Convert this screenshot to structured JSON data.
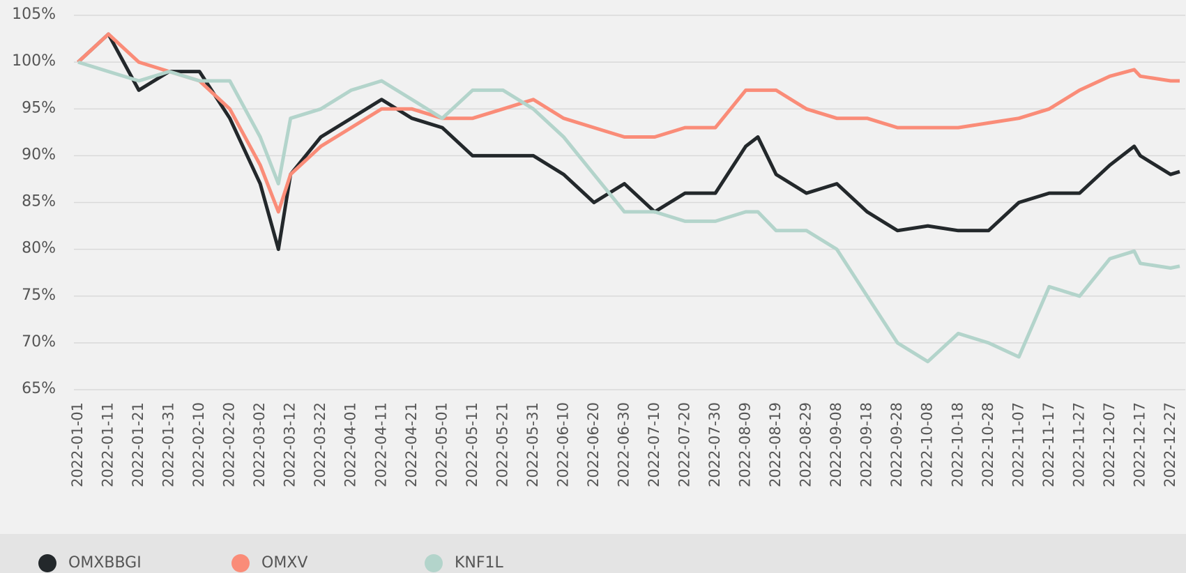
{
  "chart_data": {
    "type": "line",
    "x": [
      "2022-01-01",
      "2022-01-11",
      "2022-01-21",
      "2022-01-31",
      "2022-02-10",
      "2022-02-20",
      "2022-03-02",
      "2022-03-08",
      "2022-03-12",
      "2022-03-22",
      "2022-04-01",
      "2022-04-11",
      "2022-04-21",
      "2022-05-01",
      "2022-05-11",
      "2022-05-21",
      "2022-05-31",
      "2022-06-10",
      "2022-06-20",
      "2022-06-30",
      "2022-07-10",
      "2022-07-20",
      "2022-07-30",
      "2022-08-09",
      "2022-08-13",
      "2022-08-19",
      "2022-08-29",
      "2022-09-08",
      "2022-09-18",
      "2022-09-28",
      "2022-10-08",
      "2022-10-18",
      "2022-10-28",
      "2022-11-07",
      "2022-11-17",
      "2022-11-27",
      "2022-12-07",
      "2022-12-15",
      "2022-12-17",
      "2022-12-27",
      "2022-12-30"
    ],
    "series": [
      {
        "name": "OMXBBGI",
        "color": "#23282b",
        "values": [
          100,
          103,
          97,
          99,
          99,
          94,
          87,
          80,
          88,
          92,
          94,
          96,
          94,
          93,
          90,
          90,
          90,
          88,
          85,
          87,
          84,
          86,
          86,
          91,
          92,
          88,
          86,
          87,
          84,
          82,
          82.5,
          82,
          82,
          85,
          86,
          86,
          89,
          91,
          90,
          88,
          88.3
        ]
      },
      {
        "name": "OMXV",
        "color": "#fa8c78",
        "values": [
          100,
          103,
          100,
          99,
          98,
          95,
          89,
          84,
          88,
          91,
          93,
          95,
          95,
          94,
          94,
          95,
          96,
          94,
          93,
          92,
          92,
          93,
          93,
          97,
          97,
          97,
          95,
          94,
          94,
          93,
          93,
          93,
          93.5,
          94,
          95,
          97,
          98.5,
          99.2,
          98.5,
          98,
          98
        ]
      },
      {
        "name": "KNF1L",
        "color": "#b3d4cb",
        "values": [
          100,
          99,
          98,
          99,
          98,
          98,
          92,
          87,
          94,
          95,
          97,
          98,
          96,
          94,
          97,
          97,
          95,
          92,
          88,
          84,
          84,
          83,
          83,
          84,
          84,
          82,
          82,
          80,
          75,
          70,
          68,
          71,
          70,
          68.5,
          76,
          75,
          79,
          79.8,
          78.5,
          78,
          78.2
        ]
      }
    ],
    "xlim": [
      "2022-01-01",
      "2022-12-30"
    ],
    "xticks": [
      "2022-01-01",
      "2022-01-11",
      "2022-01-21",
      "2022-01-31",
      "2022-02-10",
      "2022-02-20",
      "2022-03-02",
      "2022-03-12",
      "2022-03-22",
      "2022-04-01",
      "2022-04-11",
      "2022-04-21",
      "2022-05-01",
      "2022-05-11",
      "2022-05-21",
      "2022-05-31",
      "2022-06-10",
      "2022-06-20",
      "2022-06-30",
      "2022-07-10",
      "2022-07-20",
      "2022-07-30",
      "2022-08-09",
      "2022-08-19",
      "2022-08-29",
      "2022-09-08",
      "2022-09-18",
      "2022-09-28",
      "2022-10-08",
      "2022-10-18",
      "2022-10-28",
      "2022-11-07",
      "2022-11-17",
      "2022-11-27",
      "2022-12-07",
      "2022-12-17",
      "2022-12-27"
    ],
    "ylim": [
      65,
      105
    ],
    "yticks": [
      {
        "value": 65,
        "label": "65%"
      },
      {
        "value": 70,
        "label": "70%"
      },
      {
        "value": 75,
        "label": "75%"
      },
      {
        "value": 80,
        "label": "80%"
      },
      {
        "value": 85,
        "label": "85%"
      },
      {
        "value": 90,
        "label": "90%"
      },
      {
        "value": 95,
        "label": "95%"
      },
      {
        "value": 100,
        "label": "100%"
      },
      {
        "value": 105,
        "label": "105%"
      }
    ],
    "grid": true,
    "legend": "bottom"
  }
}
